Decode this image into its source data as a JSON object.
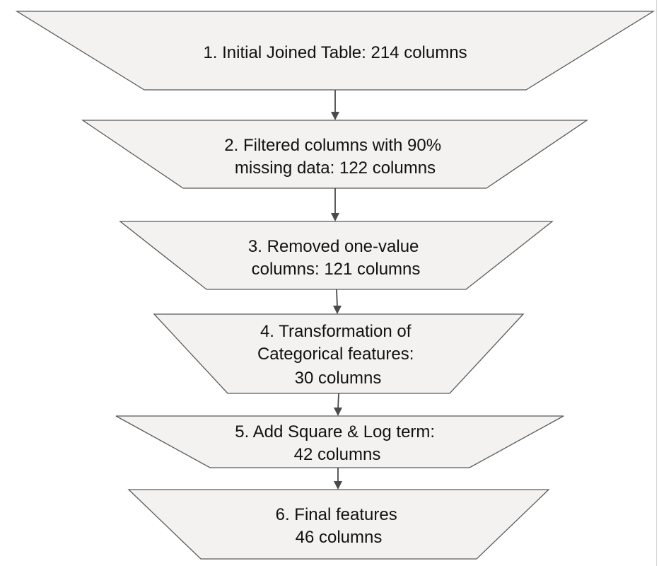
{
  "diagram": {
    "stages": [
      {
        "lines": [
          "1. Initial Joined Table: 214 columns"
        ]
      },
      {
        "lines": [
          "2. Filtered columns with 90%",
          "missing data: 122 columns"
        ]
      },
      {
        "lines": [
          "3. Removed one-value",
          "columns: 121 columns"
        ]
      },
      {
        "lines": [
          "4. Transformation of",
          "Categorical features:",
          "30 columns"
        ]
      },
      {
        "lines": [
          "5. Add Square & Log term:",
          "42 columns"
        ]
      },
      {
        "lines": [
          "6. Final features",
          "46 columns"
        ]
      }
    ],
    "colors": {
      "fill": "#f3f2f0",
      "stroke": "#5a5a5a",
      "arrow": "#4a4a4a",
      "text": "#111111"
    }
  }
}
